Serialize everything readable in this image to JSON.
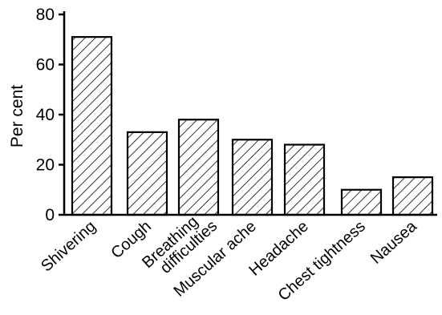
{
  "chart_data": {
    "type": "bar",
    "ylabel": "Per cent",
    "xlabel": "",
    "ylim": [
      0,
      80
    ],
    "yticks": [
      0,
      20,
      40,
      60,
      80
    ],
    "categories": [
      [
        "Shivering"
      ],
      [
        "Cough"
      ],
      [
        "Breathing",
        "difficulties"
      ],
      [
        "Muscular ache"
      ],
      [
        "Headache"
      ],
      [
        "Chest tightness"
      ],
      [
        "Nausea"
      ]
    ],
    "values": [
      71,
      33,
      38,
      30,
      28,
      10,
      15
    ],
    "grid": false,
    "bar_fill": "diagonal-hatch"
  }
}
